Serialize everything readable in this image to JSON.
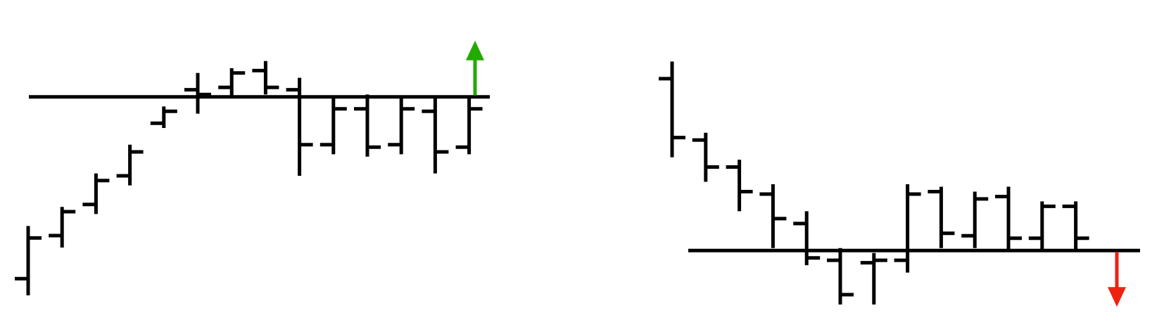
{
  "chart_data": [
    {
      "type": "ohlc",
      "title": "",
      "xlabel": "",
      "ylabel": "",
      "ylim": [
        0,
        100
      ],
      "grid": false,
      "level": 83,
      "breakout": {
        "direction": "up",
        "color": "#22aa00"
      },
      "bars": [
        {
          "open": 7,
          "high": 29,
          "low": 0,
          "close": 24
        },
        {
          "open": 25,
          "high": 37,
          "low": 20,
          "close": 35
        },
        {
          "open": 38,
          "high": 51,
          "low": 34,
          "close": 48
        },
        {
          "open": 50,
          "high": 63,
          "low": 46,
          "close": 60
        },
        {
          "open": 72,
          "high": 79,
          "low": 70,
          "close": 77
        },
        {
          "open": 86,
          "high": 93,
          "low": 76,
          "close": 84
        },
        {
          "open": 87,
          "high": 95,
          "low": 83,
          "close": 93
        },
        {
          "open": 94,
          "high": 98,
          "low": 84,
          "close": 87
        },
        {
          "open": 86,
          "high": 91,
          "low": 50,
          "close": 63
        },
        {
          "open": 63,
          "high": 83,
          "low": 59,
          "close": 78
        },
        {
          "open": 78,
          "high": 84,
          "low": 58,
          "close": 62
        },
        {
          "open": 63,
          "high": 83,
          "low": 59,
          "close": 78
        },
        {
          "open": 77,
          "high": 83,
          "low": 51,
          "close": 60
        },
        {
          "open": 62,
          "high": 83,
          "low": 59,
          "close": 78
        }
      ]
    },
    {
      "type": "ohlc",
      "title": "",
      "xlabel": "",
      "ylabel": "",
      "ylim": [
        0,
        100
      ],
      "grid": false,
      "level": 22,
      "breakout": {
        "direction": "down",
        "color": "#ee2211"
      },
      "bars": [
        {
          "open": 92,
          "high": 99,
          "low": 60,
          "close": 68
        },
        {
          "open": 67,
          "high": 70,
          "low": 50,
          "close": 56
        },
        {
          "open": 56,
          "high": 59,
          "low": 38,
          "close": 46
        },
        {
          "open": 45,
          "high": 49,
          "low": 23,
          "close": 35
        },
        {
          "open": 33,
          "high": 38,
          "low": 16,
          "close": 19
        },
        {
          "open": 18,
          "high": 23,
          "low": 0,
          "close": 4
        },
        {
          "open": 17,
          "high": 21,
          "low": 0,
          "close": 18
        },
        {
          "open": 18,
          "high": 49,
          "low": 13,
          "close": 45
        },
        {
          "open": 46,
          "high": 48,
          "low": 23,
          "close": 29
        },
        {
          "open": 28,
          "high": 46,
          "low": 23,
          "close": 43
        },
        {
          "open": 44,
          "high": 48,
          "low": 22,
          "close": 27
        },
        {
          "open": 27,
          "high": 42,
          "low": 22,
          "close": 40
        },
        {
          "open": 40,
          "high": 42,
          "low": 22,
          "close": 27
        }
      ]
    }
  ]
}
